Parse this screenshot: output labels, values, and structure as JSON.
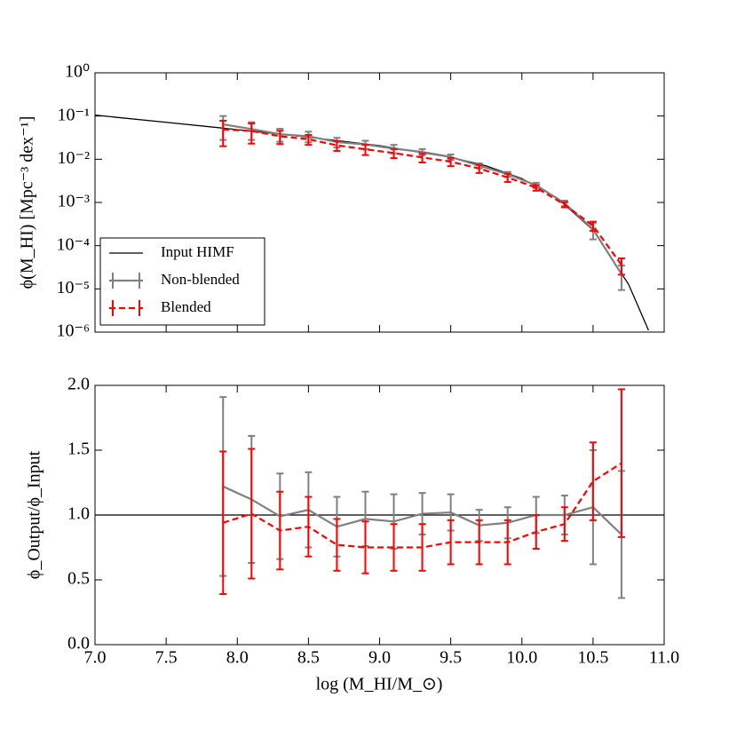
{
  "chart_data": [
    {
      "type": "line",
      "yscale": "log",
      "ylabel": "ϕ(M_HI) [Mpc⁻³ dex⁻¹]",
      "x": [
        7.9,
        8.1,
        8.3,
        8.5,
        8.7,
        8.9,
        9.1,
        9.3,
        9.5,
        9.7,
        9.9,
        10.1,
        10.3,
        10.5,
        10.7
      ],
      "xlim": [
        7.0,
        11.0
      ],
      "ylim": [
        1e-06,
        1
      ],
      "yticks": [
        {
          "value": 1e-06,
          "label": "10⁻⁶"
        },
        {
          "value": 1e-05,
          "label": "10⁻⁵"
        },
        {
          "value": 0.0001,
          "label": "10⁻⁴"
        },
        {
          "value": 0.001,
          "label": "10⁻³"
        },
        {
          "value": 0.01,
          "label": "10⁻²"
        },
        {
          "value": 0.1,
          "label": "10⁻¹"
        },
        {
          "value": 1,
          "label": "10⁰"
        }
      ],
      "legend": "lower left",
      "series": [
        {
          "name": "Input HIMF",
          "color": "#000000",
          "linestyle": "solid",
          "x": [
            7.0,
            7.5,
            8.0,
            8.5,
            9.0,
            9.5,
            9.75,
            10.0,
            10.25,
            10.5,
            10.75,
            10.89
          ],
          "values": [
            0.105,
            0.0715,
            0.0485,
            0.0324,
            0.0206,
            0.0111,
            0.007,
            0.00358,
            0.00126,
            0.000229,
            1.27e-05,
            1.1e-06
          ]
        },
        {
          "name": "Non-blended",
          "color": "#808080",
          "linestyle": "solid",
          "values": [
            0.064,
            0.05,
            0.038,
            0.034,
            0.025,
            0.022,
            0.0176,
            0.0148,
            0.0113,
            0.0071,
            0.0045,
            0.0025,
            0.00096,
            0.00024,
            2.2e-05
          ],
          "errors": [
            0.036,
            0.022,
            0.0126,
            0.0094,
            0.0063,
            0.0048,
            0.0039,
            0.0024,
            0.0016,
            0.00093,
            0.00058,
            0.00035,
            0.00014,
            0.0001,
            1.26e-05
          ]
        },
        {
          "name": "Blended",
          "color": "#ff0000",
          "linestyle": "dashed",
          "values": [
            0.049,
            0.045,
            0.034,
            0.029,
            0.021,
            0.017,
            0.0139,
            0.011,
            0.0088,
            0.0061,
            0.0038,
            0.0022,
            0.00089,
            0.00029,
            3.6e-05
          ],
          "errors": [
            0.029,
            0.022,
            0.0115,
            0.0075,
            0.0054,
            0.0045,
            0.0033,
            0.0026,
            0.0019,
            0.0013,
            0.00082,
            0.00033,
            0.00012,
            6.9e-05,
            1.47e-05
          ]
        }
      ]
    },
    {
      "type": "line",
      "yscale": "linear",
      "ylabel": "ϕ_Output/ϕ_Input",
      "xlabel": "log (M_HI/M_⊙)",
      "x": [
        7.9,
        8.1,
        8.3,
        8.5,
        8.7,
        8.9,
        9.1,
        9.3,
        9.5,
        9.7,
        9.9,
        10.1,
        10.3,
        10.5,
        10.7
      ],
      "xlim": [
        7.0,
        11.0
      ],
      "xticks": [
        {
          "value": 7,
          "label": "7.0"
        },
        7.5,
        {
          "value": 8,
          "label": "8.0"
        },
        8.5,
        {
          "value": 9,
          "label": "9.0"
        },
        9.5,
        {
          "value": 10,
          "label": "10.0"
        },
        10.5,
        {
          "value": 11,
          "label": "11.0"
        }
      ],
      "ylim": [
        0,
        2
      ],
      "yticks": [
        {
          "value": 0,
          "label": "0.0"
        },
        0.5,
        {
          "value": 1,
          "label": "1.0"
        },
        1.5,
        {
          "value": 2,
          "label": "2.0"
        }
      ],
      "hline": 1,
      "series": [
        {
          "name": "Non-blended",
          "color": "#808080",
          "linestyle": "solid",
          "values": [
            1.22,
            1.12,
            0.99,
            1.04,
            0.91,
            0.97,
            0.95,
            1.01,
            1.02,
            0.92,
            0.94,
            1.0,
            1.0,
            1.06,
            0.85
          ],
          "errors": [
            0.69,
            0.49,
            0.33,
            0.29,
            0.23,
            0.21,
            0.21,
            0.16,
            0.14,
            0.12,
            0.12,
            0.14,
            0.15,
            0.44,
            0.49
          ]
        },
        {
          "name": "Blended",
          "color": "#ff0000",
          "linestyle": "dashed",
          "values": [
            0.94,
            1.01,
            0.88,
            0.91,
            0.77,
            0.75,
            0.75,
            0.75,
            0.79,
            0.79,
            0.79,
            0.87,
            0.93,
            1.26,
            1.4
          ],
          "errors": [
            0.55,
            0.5,
            0.3,
            0.23,
            0.2,
            0.2,
            0.18,
            0.18,
            0.17,
            0.17,
            0.17,
            0.13,
            0.13,
            0.3,
            0.57
          ]
        }
      ]
    }
  ]
}
